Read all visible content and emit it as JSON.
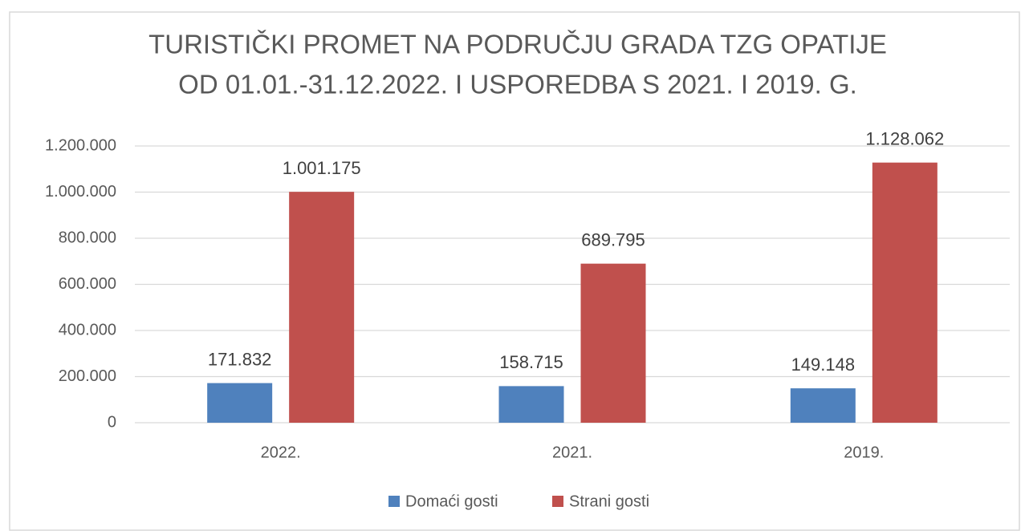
{
  "chart_data": {
    "type": "bar",
    "title": [
      "TURISTIČKI PROMET NA PODRUČJU GRADA TZG OPATIJE",
      "OD 01.01.-31.12.2022. I USPOREDBA S 2021. I 2019. G."
    ],
    "categories": [
      "2022.",
      "2021.",
      "2019."
    ],
    "series": [
      {
        "name": "Domaći gosti",
        "color": "#4f81bd",
        "values": [
          171832,
          158715,
          149148
        ],
        "value_labels": [
          "171.832",
          "158.715",
          "149.148"
        ]
      },
      {
        "name": "Strani gosti",
        "color": "#c0504d",
        "values": [
          1001175,
          689795,
          1128062
        ],
        "value_labels": [
          "1.001.175",
          "689.795",
          "1.128.062"
        ]
      }
    ],
    "ylim": [
      0,
      1200000
    ],
    "yticks": [
      0,
      {
        "value": 200000,
        "label": "200.000"
      },
      {
        "value": 400000,
        "label": "400.000"
      },
      {
        "value": 600000,
        "label": "600.000"
      },
      {
        "value": 800000,
        "label": "800.000"
      },
      {
        "value": 1000000,
        "label": "1.000.000"
      },
      {
        "value": 1200000,
        "label": "1.200.000"
      }
    ],
    "grid": true,
    "legend": "bottom"
  }
}
